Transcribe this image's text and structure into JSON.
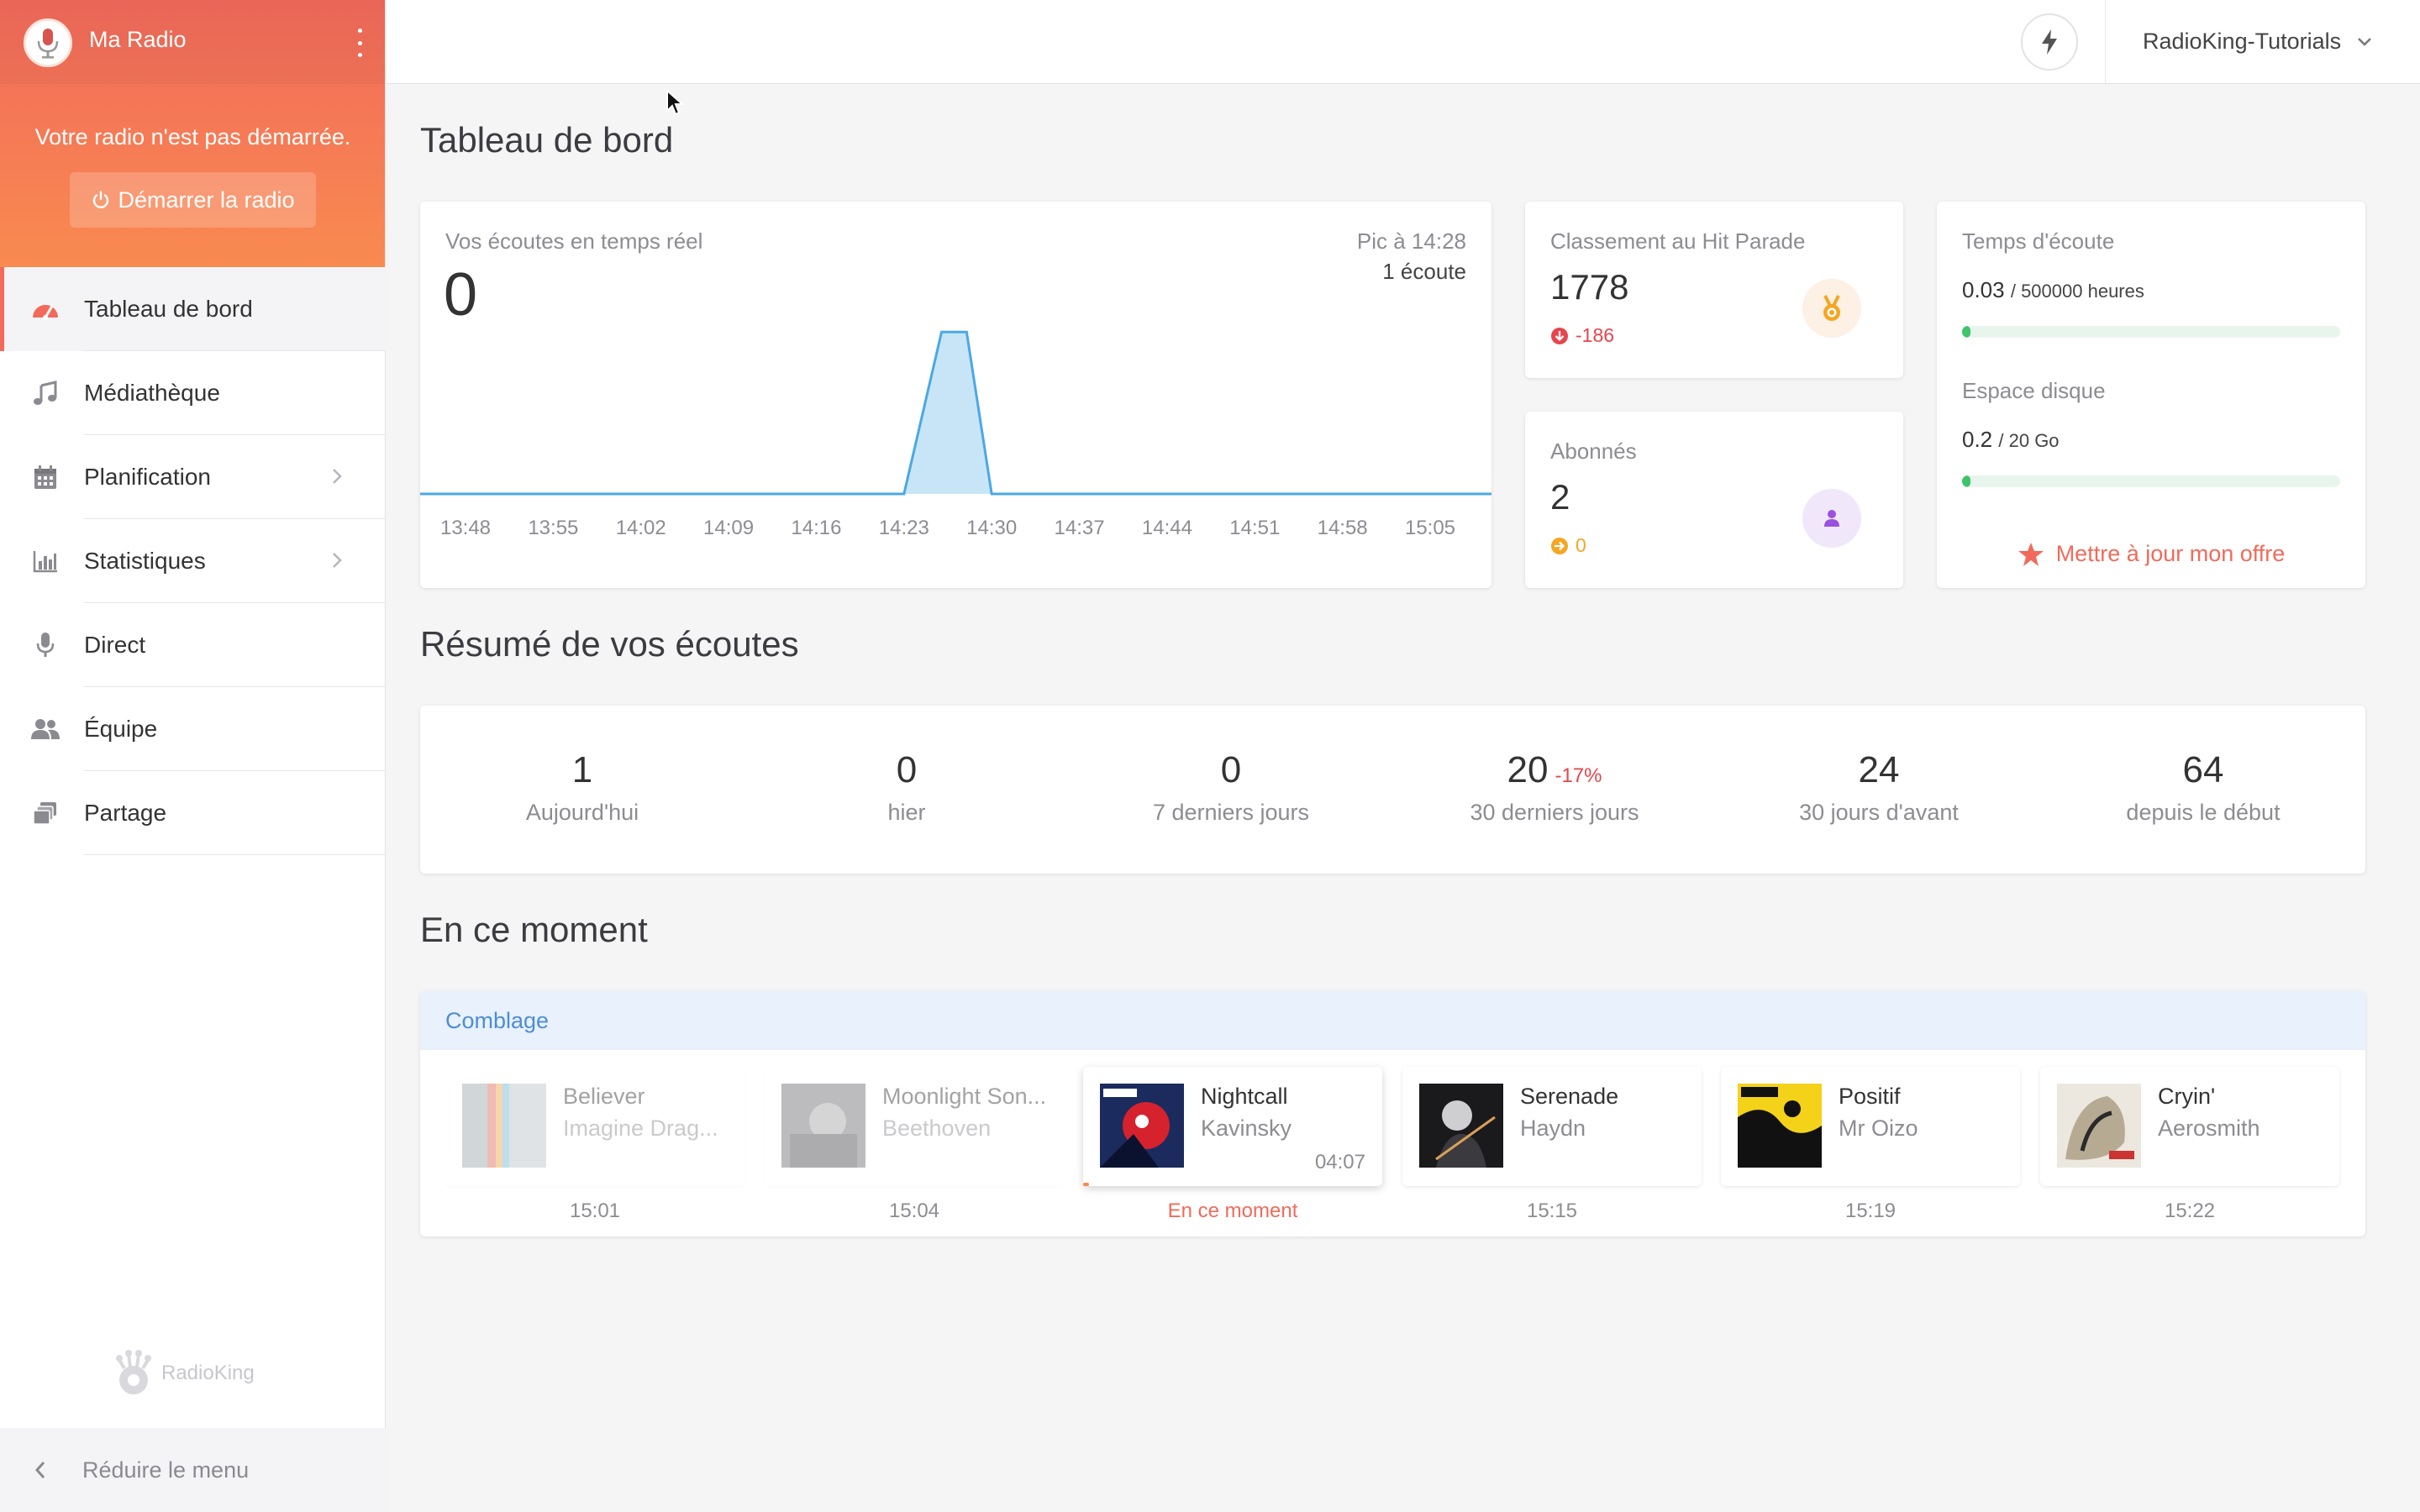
{
  "sidebar": {
    "title": "Ma Radio",
    "notice": "Votre radio n'est pas démarrée.",
    "start_button": "Démarrer la radio",
    "items": [
      {
        "label": "Tableau de bord",
        "icon": "dashboard-icon",
        "active": true
      },
      {
        "label": "Médiathèque",
        "icon": "music-note-icon"
      },
      {
        "label": "Planification",
        "icon": "calendar-icon",
        "has_submenu": true
      },
      {
        "label": "Statistiques",
        "icon": "bar-chart-icon",
        "has_submenu": true
      },
      {
        "label": "Direct",
        "icon": "microphone-icon"
      },
      {
        "label": "Équipe",
        "icon": "users-icon"
      },
      {
        "label": "Partage",
        "icon": "share-icon"
      }
    ],
    "logo_text": "RadioKing",
    "collapse_label": "Réduire le menu"
  },
  "topbar": {
    "account_name": "RadioKing-Tutorials"
  },
  "dashboard": {
    "title": "Tableau de bord",
    "realtime": {
      "label": "Vos écoutes en temps réel",
      "value": "0",
      "peak_label": "Pic à 14:28",
      "peak_count": "1 écoute"
    },
    "hit_parade": {
      "label": "Classement au Hit Parade",
      "value": "1778",
      "delta": "-186"
    },
    "subscribers": {
      "label": "Abonnés",
      "value": "2",
      "delta": "0"
    },
    "usage": {
      "listen_label": "Temps d'écoute",
      "listen_value": "0.03",
      "listen_total": "/ 500000 heures",
      "listen_fraction": 6e-08,
      "disk_label": "Espace disque",
      "disk_value": "0.2",
      "disk_total": "/ 20 Go",
      "disk_fraction": 0.01,
      "upgrade_label": "Mettre à jour mon offre"
    }
  },
  "chart_data": {
    "type": "area",
    "title": "",
    "x": [
      "13:48",
      "13:55",
      "14:02",
      "14:09",
      "14:16",
      "14:23",
      "14:30",
      "14:37",
      "14:44",
      "14:51",
      "14:58",
      "15:05"
    ],
    "series": [
      {
        "points": [
          {
            "t": "13:48",
            "y": 0
          },
          {
            "t": "14:23",
            "y": 0
          },
          {
            "t": "14:26",
            "y": 1
          },
          {
            "t": "14:28",
            "y": 1
          },
          {
            "t": "14:30",
            "y": 0
          },
          {
            "t": "15:05",
            "y": 0
          }
        ]
      }
    ],
    "ylim": [
      0,
      1.1
    ],
    "grid": false,
    "color": "#4aa8e6"
  },
  "summary": {
    "title": "Résumé de vos écoutes",
    "items": [
      {
        "value": "1",
        "label": "Aujourd'hui",
        "delta": ""
      },
      {
        "value": "0",
        "label": "hier",
        "delta": ""
      },
      {
        "value": "0",
        "label": "7 derniers jours",
        "delta": ""
      },
      {
        "value": "20",
        "label": "30 derniers jours",
        "delta": "-17%"
      },
      {
        "value": "24",
        "label": "30 jours d'avant",
        "delta": ""
      },
      {
        "value": "64",
        "label": "depuis le début",
        "delta": ""
      }
    ]
  },
  "now": {
    "title": "En ce moment",
    "playlist": "Comblage",
    "tracks": [
      {
        "title": "Believer",
        "artist": "Imagine Drag...",
        "time": "15:01",
        "state": "past",
        "duration": ""
      },
      {
        "title": "Moonlight Son...",
        "artist": "Beethoven",
        "time": "15:04",
        "state": "past",
        "duration": ""
      },
      {
        "title": "Nightcall",
        "artist": "Kavinsky",
        "time": "En ce moment",
        "state": "current",
        "duration": "04:07"
      },
      {
        "title": "Serenade",
        "artist": "Haydn",
        "time": "15:15",
        "state": "next",
        "duration": ""
      },
      {
        "title": "Positif",
        "artist": "Mr Oizo",
        "time": "15:19",
        "state": "next",
        "duration": ""
      },
      {
        "title": "Cryin'",
        "artist": "Aerosmith",
        "time": "15:22",
        "state": "next",
        "duration": ""
      }
    ],
    "current_progress": 0.02
  },
  "colors": {
    "brand": "#f26a5b",
    "brand_light": "#f98a50",
    "chart_line": "#4aa8e6",
    "negative": "#e8444d",
    "warning": "#f5a623",
    "subscriber_badge": "#f1e7fb",
    "hit_badge": "#fdf0e4"
  }
}
